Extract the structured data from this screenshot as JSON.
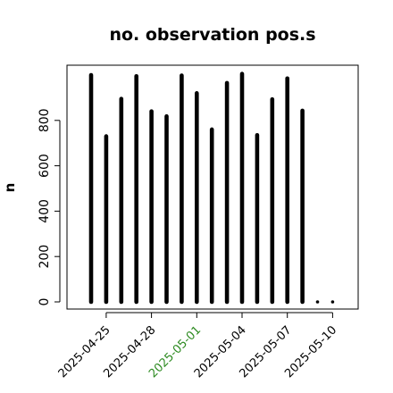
{
  "chart_data": {
    "type": "bar",
    "title": "no. observation pos.s",
    "xlabel": "",
    "ylabel": "n",
    "x": [
      "2025-04-24",
      "2025-04-25",
      "2025-04-26",
      "2025-04-27",
      "2025-04-28",
      "2025-04-29",
      "2025-04-30",
      "2025-05-01",
      "2025-05-02",
      "2025-05-03",
      "2025-05-04",
      "2025-05-05",
      "2025-05-06",
      "2025-05-07",
      "2025-05-08",
      "2025-05-09",
      "2025-05-10"
    ],
    "values": [
      1000,
      730,
      895,
      995,
      840,
      818,
      998,
      920,
      760,
      965,
      1005,
      735,
      893,
      985,
      843,
      0,
      0
    ],
    "xticks": [
      {
        "date": "2025-04-25",
        "label": "2025-04-25",
        "color": "#000000"
      },
      {
        "date": "2025-04-28",
        "label": "2025-04-28",
        "color": "#000000"
      },
      {
        "date": "2025-05-01",
        "label": "2025-05-01",
        "color": "#2e8b22"
      },
      {
        "date": "2025-05-04",
        "label": "2025-05-04",
        "color": "#000000"
      },
      {
        "date": "2025-05-07",
        "label": "2025-05-07",
        "color": "#000000"
      },
      {
        "date": "2025-05-10",
        "label": "2025-05-10",
        "color": "#000000"
      }
    ],
    "yticks": [
      0,
      200,
      400,
      600,
      800
    ],
    "ylim": [
      0,
      1040
    ],
    "grid": false,
    "bar_color": "#000000"
  }
}
